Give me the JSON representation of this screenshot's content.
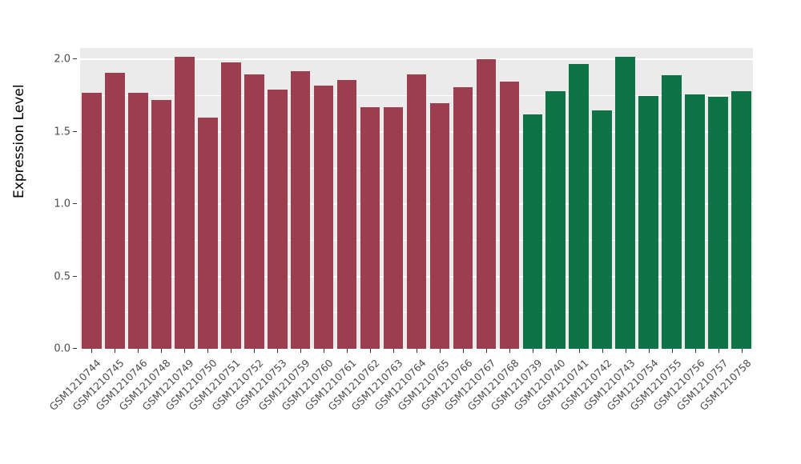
{
  "chart_data": {
    "type": "bar",
    "title": "",
    "xlabel": "",
    "ylabel": "Expression Level",
    "ylim": [
      0,
      2.08
    ],
    "y_ticks": [
      0.0,
      0.5,
      1.0,
      1.5,
      2.0
    ],
    "y_tick_labels": [
      "0.0",
      "0.5",
      "1.0",
      "1.5",
      "2.0"
    ],
    "y_minor_ticks": [
      0.25,
      0.75,
      1.25,
      1.75
    ],
    "grid": true,
    "legend": "none",
    "panel_background": "#EBEBEB",
    "gridline_color": "#ffffff",
    "categories": [
      "GSM1210744",
      "GSM1210745",
      "GSM1210746",
      "GSM1210748",
      "GSM1210749",
      "GSM1210750",
      "GSM1210751",
      "GSM1210752",
      "GSM1210753",
      "GSM1210759",
      "GSM1210760",
      "GSM1210761",
      "GSM1210762",
      "GSM1210763",
      "GSM1210764",
      "GSM1210765",
      "GSM1210766",
      "GSM1210767",
      "GSM1210768",
      "GSM1210739",
      "GSM1210740",
      "GSM1210741",
      "GSM1210742",
      "GSM1210743",
      "GSM1210754",
      "GSM1210755",
      "GSM1210756",
      "GSM1210757",
      "GSM1210758"
    ],
    "values": [
      1.77,
      1.91,
      1.77,
      1.72,
      2.02,
      1.6,
      1.98,
      1.9,
      1.79,
      1.92,
      1.82,
      1.86,
      1.67,
      1.67,
      1.9,
      1.7,
      1.81,
      2.0,
      1.85,
      1.62,
      1.78,
      1.97,
      1.65,
      2.02,
      1.75,
      1.89,
      1.76,
      1.74,
      1.78
    ],
    "group": [
      1,
      1,
      1,
      1,
      1,
      1,
      1,
      1,
      1,
      1,
      1,
      1,
      1,
      1,
      1,
      1,
      1,
      1,
      1,
      2,
      2,
      2,
      2,
      2,
      2,
      2,
      2,
      2,
      2
    ],
    "group_colors": [
      "#9D3D50",
      "#0E7447"
    ]
  }
}
